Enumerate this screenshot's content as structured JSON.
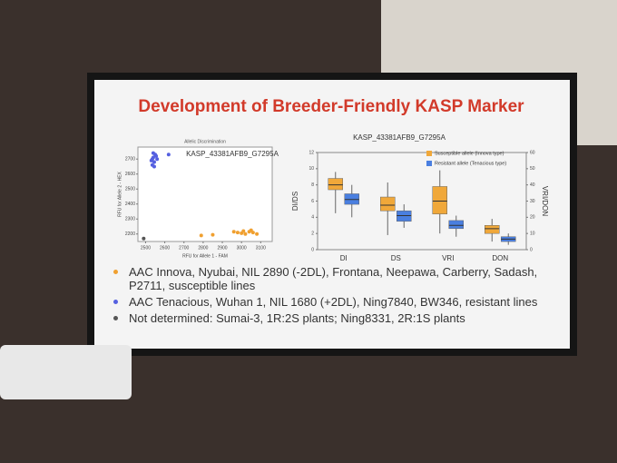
{
  "slide": {
    "title": "Development of Breeder-Friendly KASP Marker"
  },
  "chart_data": [
    {
      "type": "scatter",
      "title": "Allelic Discrimination",
      "subtitle": "KASP_43381AFB9_G7295A",
      "x_label": "RFU for Allele 1 - FAM",
      "y_label": "RFU for Allele 2 - HEX",
      "xlim": [
        2460,
        3160
      ],
      "ylim": [
        2150,
        2780
      ],
      "xticks": [
        2500,
        2600,
        2700,
        2800,
        2900,
        3000,
        3100
      ],
      "yticks": [
        2200,
        2300,
        2400,
        2500,
        2600,
        2700
      ],
      "series": [
        {
          "name": "AAC Innova, Nyubai, NIL 2890 (-2DL), Frontana, Neepawa, Carberry, Sadash, P2711, susceptible lines",
          "color": "#f0a030",
          "x": [
            2790,
            2850,
            2960,
            2980,
            3000,
            3010,
            3020,
            3040,
            3050,
            3060,
            3080
          ],
          "values": [
            2190,
            2195,
            2215,
            2210,
            2205,
            2220,
            2200,
            2215,
            2225,
            2210,
            2200
          ]
        },
        {
          "name": "AAC Tenacious, Wuhan 1, NIL 1680 (+2DL), Ning7840, BW346, resistant lines",
          "color": "#5560e0",
          "x": [
            2530,
            2535,
            2540,
            2545,
            2550,
            2555,
            2540,
            2560,
            2535,
            2545,
            2620
          ],
          "values": [
            2690,
            2700,
            2710,
            2680,
            2730,
            2720,
            2740,
            2700,
            2660,
            2650,
            2730
          ]
        },
        {
          "name": "Not determined: Sumai-3, 1R:2S plants; Ning8331, 2R:1S plants",
          "color": "#555555",
          "x": [
            2490
          ],
          "values": [
            2170
          ]
        }
      ]
    },
    {
      "type": "box",
      "title": "KASP_43381AFB9_G7295A",
      "y_label": "DI/DS",
      "y2_label": "VRI/DON",
      "categories": [
        "DI",
        "DS",
        "VRI",
        "DON"
      ],
      "category_axes": [
        "y",
        "y",
        "y2",
        "y2"
      ],
      "ylim": [
        0,
        12
      ],
      "yticks": [
        0,
        2,
        4,
        6,
        8,
        10,
        12
      ],
      "y2lim": [
        0,
        60
      ],
      "y2ticks": [
        0,
        10,
        20,
        30,
        40,
        50,
        60
      ],
      "series": [
        {
          "name": "Susceptible allele (Innova type)",
          "color": "#f0a83a",
          "values": [
            {
              "min": 4.5,
              "q1": 7.4,
              "median": 8.0,
              "q3": 8.8,
              "max": 9.6
            },
            {
              "min": 1.8,
              "q1": 4.8,
              "median": 5.5,
              "q3": 6.5,
              "max": 8.3
            },
            {
              "min": 10,
              "q1": 22,
              "median": 30,
              "q3": 39,
              "max": 49
            },
            {
              "min": 5,
              "q1": 10,
              "median": 13,
              "q3": 15,
              "max": 19
            }
          ]
        },
        {
          "name": "Resistant allele (Tenacious type)",
          "color": "#4a7fe0",
          "values": [
            {
              "min": 4,
              "q1": 5.6,
              "median": 6.2,
              "q3": 6.9,
              "max": 8
            },
            {
              "min": 2.7,
              "q1": 3.5,
              "median": 4.2,
              "q3": 4.8,
              "max": 5.6
            },
            {
              "min": 8,
              "q1": 13,
              "median": 15,
              "q3": 18,
              "max": 21
            },
            {
              "min": 3,
              "q1": 5,
              "median": 6.5,
              "q3": 8,
              "max": 10
            }
          ]
        }
      ]
    }
  ]
}
